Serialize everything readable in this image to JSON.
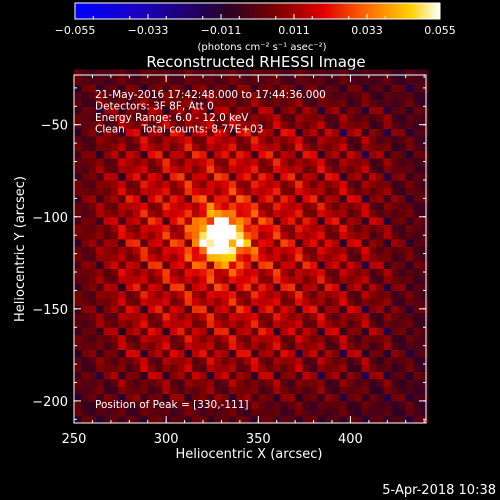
{
  "chart_data": {
    "type": "heatmap",
    "title": "Reconstructed RHESSI Image",
    "xlabel": "Heliocentric X (arcsec)",
    "ylabel": "Heliocentric Y (arcsec)",
    "xlim": [
      250,
      441
    ],
    "ylim": [
      -212,
      -23
    ],
    "xticks": [
      250,
      300,
      350,
      400
    ],
    "yticks": [
      -50,
      -100,
      -150,
      -200
    ],
    "colorbar": {
      "min": -0.055,
      "max": 0.055,
      "ticks": [
        "-0.055",
        "-0.033",
        "-0.011",
        "0.011",
        "0.033",
        "0.055"
      ],
      "unit_label": "(photons cm⁻² s⁻¹ asec⁻²)",
      "colormap": "rhessi-blue-black-red-yellow-white"
    },
    "annotations": [
      "21-May-2016 17:42:48.000 to 17:44:36.000",
      "Detectors: 3F 8F, Att 0",
      "Energy Range: 6.0 - 12.0 keV",
      "Clean     Total counts: 8.77E+03"
    ],
    "peak_label": "Position of Peak = [330,-111]",
    "peak": {
      "x": 330,
      "y": -111,
      "value": 0.055
    },
    "source": {
      "x": 330,
      "y": -111,
      "sigma": 9,
      "amplitude": 0.055
    },
    "background_level": 0.018,
    "ripple_period_arcsec": 12,
    "pixel_size_arcsec": 4
  },
  "footer": {
    "plot_date": "5-Apr-2018 10:38"
  }
}
